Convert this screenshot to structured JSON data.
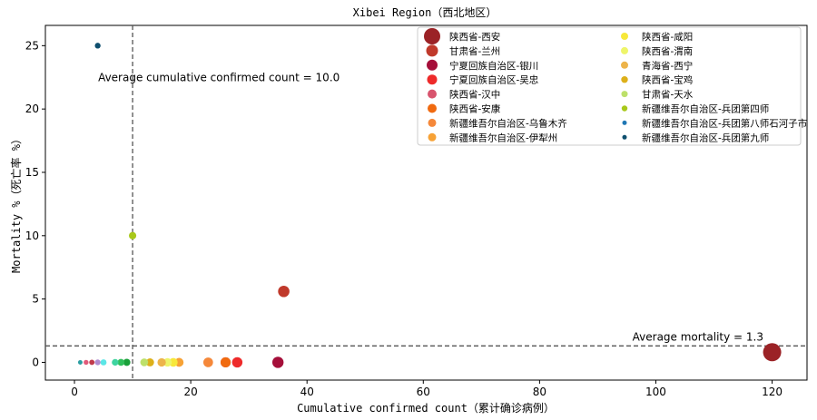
{
  "chart_data": {
    "type": "scatter",
    "title": "Xibei Region（西北地区）",
    "xlabel": "Cumulative confirmed count（累计确诊病例）",
    "ylabel": "Mortality %（死亡率 %）",
    "xlim": [
      -5,
      126
    ],
    "ylim": [
      -1.4,
      26.6
    ],
    "xticks": [
      0,
      20,
      40,
      60,
      80,
      100,
      120
    ],
    "yticks": [
      0,
      5,
      10,
      15,
      20,
      25
    ],
    "grid": false,
    "legend_position": "top-right",
    "reference_lines": [
      {
        "orientation": "vertical",
        "value": 10.0,
        "label": "Average cumulative confirmed count = 10.0"
      },
      {
        "orientation": "horizontal",
        "value": 1.3,
        "label": "Average mortality = 1.3"
      }
    ],
    "series": [
      {
        "name": "陕西省-西安",
        "color": "#9b2226",
        "points": [
          [
            120,
            0.8
          ]
        ]
      },
      {
        "name": "甘肃省-兰州",
        "color": "#c0392b",
        "points": [
          [
            36,
            5.6
          ]
        ]
      },
      {
        "name": "宁夏回族自治区-银川",
        "color": "#a50f3a",
        "points": [
          [
            35,
            0
          ]
        ]
      },
      {
        "name": "宁夏回族自治区-吴忠",
        "color": "#ee2a2a",
        "points": [
          [
            28,
            0
          ]
        ]
      },
      {
        "name": "陕西省-汉中",
        "color": "#d8546e",
        "points": [
          [
            26,
            0
          ]
        ]
      },
      {
        "name": "陕西省-安康",
        "color": "#f06a10",
        "points": [
          [
            26,
            0
          ]
        ]
      },
      {
        "name": "新疆维吾尔自治区-乌鲁木齐",
        "color": "#f5883a",
        "points": [
          [
            23,
            0
          ]
        ]
      },
      {
        "name": "新疆维吾尔自治区-伊犁州",
        "color": "#f7a236",
        "points": [
          [
            18,
            0
          ]
        ]
      },
      {
        "name": "陕西省-咸阳",
        "color": "#f7e83a",
        "points": [
          [
            17,
            0
          ]
        ]
      },
      {
        "name": "陕西省-渭南",
        "color": "#eef56a",
        "points": [
          [
            16,
            0
          ]
        ]
      },
      {
        "name": "青海省-西宁",
        "color": "#edb44a",
        "points": [
          [
            15,
            0
          ]
        ]
      },
      {
        "name": "陕西省-宝鸡",
        "color": "#ddb01a",
        "points": [
          [
            13,
            0
          ]
        ]
      },
      {
        "name": "甘肃省-天水",
        "color": "#bde06a",
        "points": [
          [
            12,
            0
          ]
        ]
      },
      {
        "name": "新疆维吾尔自治区-兵团第四师",
        "color": "#a8c81a",
        "points": [
          [
            10,
            10
          ]
        ]
      },
      {
        "name": "新疆维吾尔自治区-兵团第八师石河子市",
        "color": "#1f77b4",
        "points": [
          [
            1,
            0
          ]
        ]
      },
      {
        "name": "新疆维吾尔自治区-兵团第九师",
        "color": "#0e4f6e",
        "points": [
          [
            4,
            25
          ]
        ]
      },
      {
        "color": "#1aa03a",
        "points": [
          [
            9,
            0
          ]
        ]
      },
      {
        "color": "#2fbf5a",
        "points": [
          [
            8,
            0
          ]
        ]
      },
      {
        "color": "#3fd4a0",
        "points": [
          [
            7,
            0
          ]
        ]
      },
      {
        "color": "#5be6e6",
        "points": [
          [
            5,
            0
          ]
        ]
      },
      {
        "color": "#b08ad0",
        "points": [
          [
            4,
            0
          ]
        ]
      },
      {
        "color": "#c03a4a",
        "points": [
          [
            3,
            0
          ]
        ]
      },
      {
        "color": "#e05a7a",
        "points": [
          [
            2,
            0
          ]
        ]
      },
      {
        "color": "#2aa0a0",
        "points": [
          [
            1,
            0
          ]
        ]
      }
    ]
  }
}
